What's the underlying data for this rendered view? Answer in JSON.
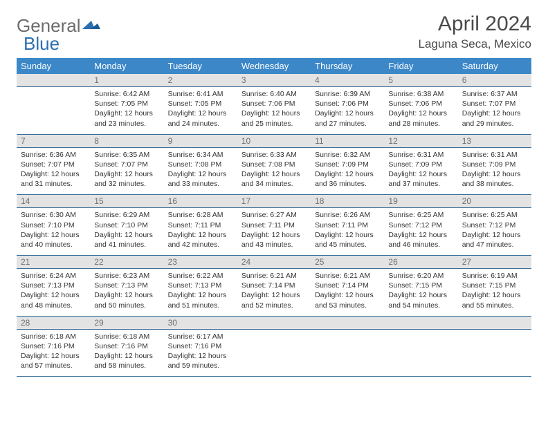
{
  "brand": {
    "part1": "General",
    "part2": "Blue"
  },
  "colors": {
    "header_bg": "#3b87c8",
    "header_text": "#ffffff",
    "daynum_bg": "#e3e3e3",
    "daynum_text": "#6e6e6e",
    "border": "#3b6f99",
    "body_text": "#333333",
    "title_text": "#4a4a4a",
    "brand_gray": "#6c6c6c",
    "brand_blue": "#2b6fb0"
  },
  "title": "April 2024",
  "location": "Laguna Seca, Mexico",
  "weekdays": [
    "Sunday",
    "Monday",
    "Tuesday",
    "Wednesday",
    "Thursday",
    "Friday",
    "Saturday"
  ],
  "weeks": [
    [
      null,
      {
        "n": "1",
        "sr": "6:42 AM",
        "ss": "7:05 PM",
        "dl": "12 hours and 23 minutes."
      },
      {
        "n": "2",
        "sr": "6:41 AM",
        "ss": "7:05 PM",
        "dl": "12 hours and 24 minutes."
      },
      {
        "n": "3",
        "sr": "6:40 AM",
        "ss": "7:06 PM",
        "dl": "12 hours and 25 minutes."
      },
      {
        "n": "4",
        "sr": "6:39 AM",
        "ss": "7:06 PM",
        "dl": "12 hours and 27 minutes."
      },
      {
        "n": "5",
        "sr": "6:38 AM",
        "ss": "7:06 PM",
        "dl": "12 hours and 28 minutes."
      },
      {
        "n": "6",
        "sr": "6:37 AM",
        "ss": "7:07 PM",
        "dl": "12 hours and 29 minutes."
      }
    ],
    [
      {
        "n": "7",
        "sr": "6:36 AM",
        "ss": "7:07 PM",
        "dl": "12 hours and 31 minutes."
      },
      {
        "n": "8",
        "sr": "6:35 AM",
        "ss": "7:07 PM",
        "dl": "12 hours and 32 minutes."
      },
      {
        "n": "9",
        "sr": "6:34 AM",
        "ss": "7:08 PM",
        "dl": "12 hours and 33 minutes."
      },
      {
        "n": "10",
        "sr": "6:33 AM",
        "ss": "7:08 PM",
        "dl": "12 hours and 34 minutes."
      },
      {
        "n": "11",
        "sr": "6:32 AM",
        "ss": "7:09 PM",
        "dl": "12 hours and 36 minutes."
      },
      {
        "n": "12",
        "sr": "6:31 AM",
        "ss": "7:09 PM",
        "dl": "12 hours and 37 minutes."
      },
      {
        "n": "13",
        "sr": "6:31 AM",
        "ss": "7:09 PM",
        "dl": "12 hours and 38 minutes."
      }
    ],
    [
      {
        "n": "14",
        "sr": "6:30 AM",
        "ss": "7:10 PM",
        "dl": "12 hours and 40 minutes."
      },
      {
        "n": "15",
        "sr": "6:29 AM",
        "ss": "7:10 PM",
        "dl": "12 hours and 41 minutes."
      },
      {
        "n": "16",
        "sr": "6:28 AM",
        "ss": "7:11 PM",
        "dl": "12 hours and 42 minutes."
      },
      {
        "n": "17",
        "sr": "6:27 AM",
        "ss": "7:11 PM",
        "dl": "12 hours and 43 minutes."
      },
      {
        "n": "18",
        "sr": "6:26 AM",
        "ss": "7:11 PM",
        "dl": "12 hours and 45 minutes."
      },
      {
        "n": "19",
        "sr": "6:25 AM",
        "ss": "7:12 PM",
        "dl": "12 hours and 46 minutes."
      },
      {
        "n": "20",
        "sr": "6:25 AM",
        "ss": "7:12 PM",
        "dl": "12 hours and 47 minutes."
      }
    ],
    [
      {
        "n": "21",
        "sr": "6:24 AM",
        "ss": "7:13 PM",
        "dl": "12 hours and 48 minutes."
      },
      {
        "n": "22",
        "sr": "6:23 AM",
        "ss": "7:13 PM",
        "dl": "12 hours and 50 minutes."
      },
      {
        "n": "23",
        "sr": "6:22 AM",
        "ss": "7:13 PM",
        "dl": "12 hours and 51 minutes."
      },
      {
        "n": "24",
        "sr": "6:21 AM",
        "ss": "7:14 PM",
        "dl": "12 hours and 52 minutes."
      },
      {
        "n": "25",
        "sr": "6:21 AM",
        "ss": "7:14 PM",
        "dl": "12 hours and 53 minutes."
      },
      {
        "n": "26",
        "sr": "6:20 AM",
        "ss": "7:15 PM",
        "dl": "12 hours and 54 minutes."
      },
      {
        "n": "27",
        "sr": "6:19 AM",
        "ss": "7:15 PM",
        "dl": "12 hours and 55 minutes."
      }
    ],
    [
      {
        "n": "28",
        "sr": "6:18 AM",
        "ss": "7:16 PM",
        "dl": "12 hours and 57 minutes."
      },
      {
        "n": "29",
        "sr": "6:18 AM",
        "ss": "7:16 PM",
        "dl": "12 hours and 58 minutes."
      },
      {
        "n": "30",
        "sr": "6:17 AM",
        "ss": "7:16 PM",
        "dl": "12 hours and 59 minutes."
      },
      null,
      null,
      null,
      null
    ]
  ],
  "labels": {
    "sunrise": "Sunrise:",
    "sunset": "Sunset:",
    "daylight": "Daylight:"
  }
}
